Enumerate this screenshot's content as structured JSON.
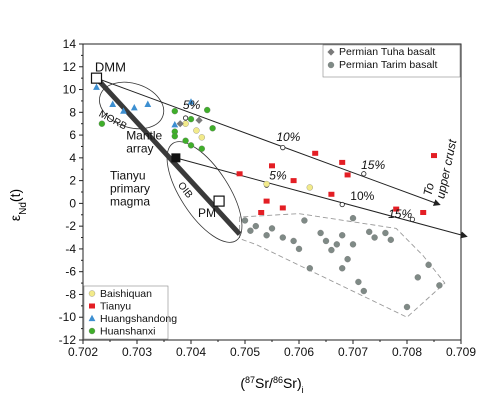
{
  "chart_data": {
    "type": "scatter",
    "title": "",
    "xlabel": "(87Sr/86Sr)i",
    "ylabel": "εNd(t)",
    "xlim": [
      0.702,
      0.709
    ],
    "ylim": [
      -12,
      14
    ],
    "x_ticks": [
      "0.702",
      "0.703",
      "0.704",
      "0.705",
      "0.706",
      "0.707",
      "0.708",
      "0.709"
    ],
    "x_tick_values": [
      0.702,
      0.703,
      0.704,
      0.705,
      0.706,
      0.707,
      0.708,
      0.709
    ],
    "y_ticks": [
      "-12",
      "-10",
      "-8",
      "-6",
      "-4",
      "-2",
      "0",
      "2",
      "4",
      "6",
      "8",
      "10",
      "12",
      "14"
    ],
    "y_tick_values": [
      -12,
      -10,
      -8,
      -6,
      -4,
      -2,
      0,
      2,
      4,
      6,
      8,
      10,
      12,
      14
    ],
    "grid": false,
    "legend_top": {
      "placement": "top-right",
      "items": [
        {
          "label": "Permian Tuha basalt",
          "marker": "diamond",
          "color": "#7a7a7a"
        },
        {
          "label": "Permian Tarim basalt",
          "marker": "circle",
          "color": "#7f8a86"
        }
      ]
    },
    "legend_bottom": {
      "placement": "bottom-left",
      "items": [
        {
          "label": "Baishiquan",
          "marker": "circle",
          "color": "#f2ea8a"
        },
        {
          "label": "Tianyu",
          "marker": "square",
          "color": "#e31e24"
        },
        {
          "label": "Huangshandong",
          "marker": "triangle",
          "color": "#3d8fd1"
        },
        {
          "label": "Huanshanxi",
          "marker": "circle",
          "color": "#3fae2a"
        }
      ]
    },
    "series": [
      {
        "name": "Baishiquan",
        "marker": "circle",
        "color": "#f2ea8a",
        "points": [
          [
            0.7039,
            7.0
          ],
          [
            0.7041,
            6.4
          ],
          [
            0.7042,
            5.8
          ],
          [
            0.7054,
            1.7
          ],
          [
            0.7062,
            1.4
          ]
        ]
      },
      {
        "name": "Tianyu",
        "marker": "square",
        "color": "#e31e24",
        "points": [
          [
            0.7049,
            2.6
          ],
          [
            0.7055,
            3.3
          ],
          [
            0.7054,
            0.2
          ],
          [
            0.7057,
            -0.4
          ],
          [
            0.7053,
            -0.8
          ],
          [
            0.7059,
            2.0
          ],
          [
            0.7063,
            4.4
          ],
          [
            0.7066,
            0.8
          ],
          [
            0.7068,
            3.6
          ],
          [
            0.7069,
            2.5
          ],
          [
            0.7078,
            -0.5
          ],
          [
            0.7083,
            -0.8
          ],
          [
            0.7085,
            4.2
          ]
        ]
      },
      {
        "name": "Huangshandong",
        "marker": "triangle",
        "color": "#3d8fd1",
        "points": [
          [
            0.70225,
            10.2
          ],
          [
            0.70255,
            8.7
          ],
          [
            0.70275,
            8.1
          ],
          [
            0.70295,
            8.4
          ],
          [
            0.7032,
            8.7
          ],
          [
            0.7037,
            6.9
          ],
          [
            0.704,
            8.9
          ]
        ]
      },
      {
        "name": "Huanshanxi",
        "marker": "circle",
        "color": "#3fae2a",
        "points": [
          [
            0.70235,
            7.0
          ],
          [
            0.7037,
            8.1
          ],
          [
            0.704,
            7.4
          ],
          [
            0.7043,
            8.2
          ],
          [
            0.7037,
            6.3
          ],
          [
            0.7037,
            5.9
          ],
          [
            0.7039,
            5.5
          ],
          [
            0.704,
            5.1
          ],
          [
            0.7042,
            4.8
          ],
          [
            0.7044,
            6.6
          ]
        ]
      },
      {
        "name": "Permian Tuha basalt",
        "marker": "diamond",
        "color": "#7a7a7a",
        "points": [
          [
            0.7038,
            7.0
          ],
          [
            0.70415,
            7.3
          ]
        ]
      },
      {
        "name": "Permian Tarim basalt",
        "marker": "circle",
        "color": "#7f8a86",
        "points": [
          [
            0.705,
            -1.5
          ],
          [
            0.7051,
            -2.4
          ],
          [
            0.7052,
            -2.0
          ],
          [
            0.7054,
            -2.8
          ],
          [
            0.7055,
            -2.2
          ],
          [
            0.7057,
            -3.0
          ],
          [
            0.7059,
            -3.3
          ],
          [
            0.7061,
            -1.5
          ],
          [
            0.706,
            -4.0
          ],
          [
            0.7062,
            -5.7
          ],
          [
            0.7064,
            -2.6
          ],
          [
            0.7065,
            -3.3
          ],
          [
            0.7066,
            -4.1
          ],
          [
            0.7067,
            -3.6
          ],
          [
            0.7068,
            -2.8
          ],
          [
            0.7068,
            -5.7
          ],
          [
            0.7069,
            -4.9
          ],
          [
            0.707,
            -1.3
          ],
          [
            0.707,
            -3.6
          ],
          [
            0.7071,
            -6.9
          ],
          [
            0.7072,
            -7.7
          ],
          [
            0.7073,
            -2.5
          ],
          [
            0.7074,
            -3.0
          ],
          [
            0.7076,
            -2.6
          ],
          [
            0.7077,
            -3.2
          ],
          [
            0.708,
            -9.1
          ],
          [
            0.7082,
            -6.5
          ],
          [
            0.7084,
            -5.4
          ],
          [
            0.7086,
            -7.2
          ]
        ]
      }
    ],
    "labels": {
      "dmm": "DMM",
      "pm": "PM",
      "morb": "MORB",
      "oib": "OIB",
      "mantle_array": "Mantle\narray",
      "tianyu_primary": "Tianyu\nprimary\nmagma",
      "to_upper_crust": "To\nupper crust",
      "pct5_upper": "5%",
      "pct10_upper": "10%",
      "pct15_upper": "15%",
      "pct5_lower": "5%",
      "pct10_lower": "10%",
      "pct15_lower": "15%"
    },
    "reference_points": {
      "dmm": [
        0.70225,
        11.0
      ],
      "pm": [
        0.70452,
        0.2
      ],
      "tianyu_primary": [
        0.70372,
        4.0
      ]
    },
    "mixing_lines": [
      {
        "start": [
          0.70225,
          11.0
        ],
        "end": [
          0.7086,
          -0.1
        ],
        "ticks": [
          [
            0.7039,
            7.5
          ],
          [
            0.7057,
            4.9
          ],
          [
            0.7072,
            2.6
          ]
        ]
      },
      {
        "start": [
          0.70372,
          4.0
        ],
        "end": [
          0.7091,
          -2.9
        ],
        "ticks": [
          [
            0.7054,
            1.6
          ],
          [
            0.7068,
            -0.1
          ],
          [
            0.7081,
            -1.4
          ]
        ]
      }
    ]
  }
}
